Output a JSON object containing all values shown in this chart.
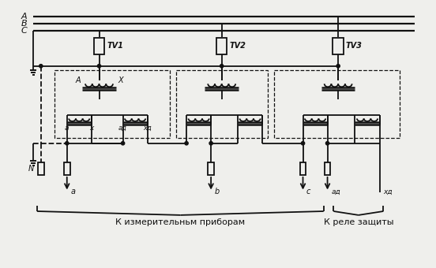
{
  "fig_width": 5.52,
  "fig_height": 3.4,
  "dpi": 100,
  "bg_color": "#efefec",
  "line_color": "#111111",
  "label_bottom1": "К измерительньм приборам",
  "label_bottom2": "К реле защиты",
  "label_A": "A",
  "label_B": "B",
  "label_C": "C",
  "label_TV1": "TV1",
  "label_TV2": "TV2",
  "label_TV3": "TV3"
}
